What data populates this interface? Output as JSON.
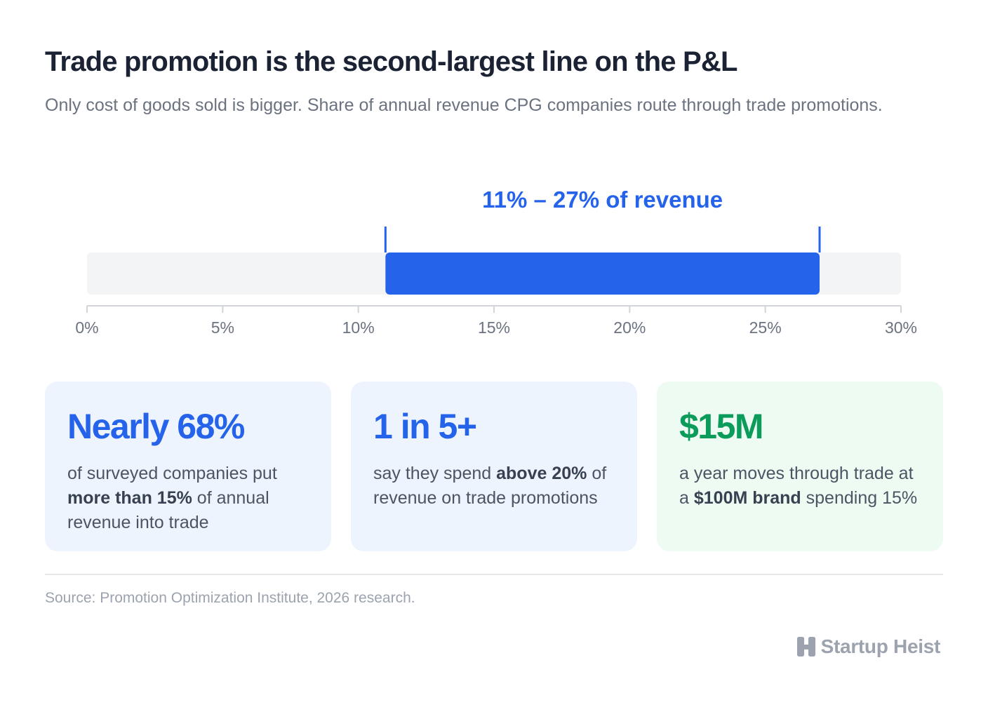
{
  "header": {
    "title": "Trade promotion is the second-largest line on the P&L",
    "subtitle": "Only cost of goods sold is bigger. Share of annual revenue CPG companies route through trade promotions."
  },
  "chart_data": {
    "type": "range-bar",
    "range": {
      "low": 11,
      "high": 27
    },
    "range_label": "11% – 27% of revenue",
    "xlim": [
      0,
      30
    ],
    "ticks": [
      {
        "value": 0,
        "label": "0%"
      },
      {
        "value": 5,
        "label": "5%"
      },
      {
        "value": 10,
        "label": "10%"
      },
      {
        "value": 15,
        "label": "15%"
      },
      {
        "value": 20,
        "label": "20%"
      },
      {
        "value": 25,
        "label": "25%"
      },
      {
        "value": 30,
        "label": "30%"
      }
    ],
    "colors": {
      "range": "#2563eb",
      "track": "#f3f4f6",
      "axis": "#d1d5db"
    }
  },
  "cards": [
    {
      "stat": "Nearly 68%",
      "desc_pre": "of surveyed companies put ",
      "desc_bold": "more than 15%",
      "desc_post": " of annual revenue into trade",
      "accent": "#2563eb"
    },
    {
      "stat": "1 in 5+",
      "desc_pre": "say they spend ",
      "desc_bold": "above 20%",
      "desc_post": " of revenue on trade promotions",
      "accent": "#2563eb"
    },
    {
      "stat": "$15M",
      "desc_pre": "a year moves through trade at a ",
      "desc_bold": "$100M brand",
      "desc_post": " spending 15%",
      "accent": "#0b9b5a"
    }
  ],
  "footer": {
    "source": "Source: Promotion Optimization Institute, 2026 research.",
    "brand": "Startup Heist",
    "brand_icon": "building-icon"
  }
}
